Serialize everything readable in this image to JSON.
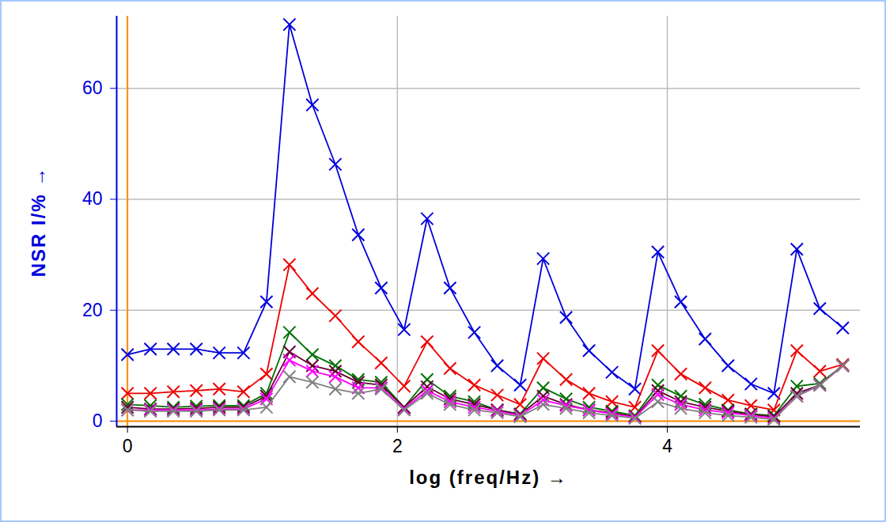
{
  "chart_data": {
    "type": "line",
    "xlabel": "log (freq/Hz)",
    "ylabel": "NSR I/%",
    "x": [
      0,
      0.17,
      0.34,
      0.51,
      0.68,
      0.86,
      1.03,
      1.2,
      1.37,
      1.54,
      1.71,
      1.88,
      2.05,
      2.22,
      2.39,
      2.57,
      2.74,
      2.91,
      3.08,
      3.25,
      3.42,
      3.59,
      3.76,
      3.93,
      4.1,
      4.28,
      4.45,
      4.62,
      4.79,
      4.96,
      5.13,
      5.3
    ],
    "series": [
      {
        "color": "#0000dd",
        "marker": "x",
        "line_style": "solid",
        "values": [
          12,
          13,
          13,
          13,
          12.3,
          12.3,
          21.5,
          71.5,
          57,
          46.3,
          33.6,
          24,
          16.5,
          36.5,
          24,
          16,
          10,
          6.5,
          29.3,
          18.7,
          12.7,
          8.8,
          5.8,
          30.5,
          21.5,
          14.8,
          10,
          6.7,
          5,
          31,
          20.3,
          16.8
        ]
      },
      {
        "color": "#ee0000",
        "marker": "x",
        "line_style": "solid",
        "values": [
          5,
          5,
          5.3,
          5.5,
          5.8,
          5.3,
          8.5,
          28.2,
          23,
          19,
          14.3,
          10.5,
          6.3,
          14.3,
          9.5,
          6.5,
          4.7,
          3,
          11.3,
          7.5,
          5,
          3.5,
          2.5,
          12.7,
          8.5,
          6,
          3.8,
          2.8,
          2,
          12.7,
          9,
          10.2
        ]
      },
      {
        "color": "#007000",
        "marker": "x",
        "line_style": "solid",
        "values": [
          3,
          2.8,
          2.5,
          2.7,
          2.8,
          2.8,
          5,
          16,
          12,
          10,
          7.5,
          7,
          2.5,
          7.5,
          4.5,
          3.5,
          2,
          1.3,
          6,
          4,
          2.5,
          1.8,
          1,
          6.5,
          4.5,
          3,
          2,
          1.3,
          1,
          6.3,
          6.8,
          10
        ]
      },
      {
        "color": "#660033",
        "marker": "x",
        "line_style": "solid",
        "values": [
          2.5,
          2.2,
          2.2,
          2.3,
          2.5,
          2.5,
          4.5,
          12.5,
          10,
          9,
          7,
          6.5,
          2.5,
          6.2,
          4,
          3,
          2,
          1.2,
          4.5,
          3,
          2,
          1.5,
          0.8,
          5.5,
          3.5,
          2.5,
          1.8,
          1.2,
          0.8,
          5,
          6.5,
          10
        ]
      },
      {
        "color": "#ff00ff",
        "marker": "x",
        "line_style": "solid",
        "values": [
          2,
          2,
          2,
          2,
          2.2,
          2.2,
          4,
          11,
          9,
          8,
          6,
          6,
          2.2,
          5.5,
          3.5,
          2.5,
          1.8,
          1,
          3.8,
          2.8,
          2,
          1.3,
          0.7,
          4.8,
          3,
          2,
          1.5,
          1,
          0.5,
          4.5,
          6.5,
          10
        ]
      },
      {
        "color": "#808080",
        "marker": "x",
        "line_style": "solid",
        "values": [
          2,
          1.8,
          1.8,
          1.8,
          2,
          2,
          2.5,
          8,
          7,
          5.8,
          5,
          5.8,
          2,
          5,
          3,
          2,
          1.5,
          0.8,
          3,
          2.3,
          1.5,
          1,
          0.5,
          3.5,
          2.3,
          1.5,
          1,
          0.7,
          0.3,
          4.5,
          6.5,
          10
        ]
      }
    ],
    "xlim": [
      -0.08,
      5.43
    ],
    "ylim": [
      -1,
      73
    ],
    "xticks": [
      0,
      2,
      4
    ],
    "yticks": [
      0,
      20,
      40,
      60
    ],
    "grid": true
  }
}
